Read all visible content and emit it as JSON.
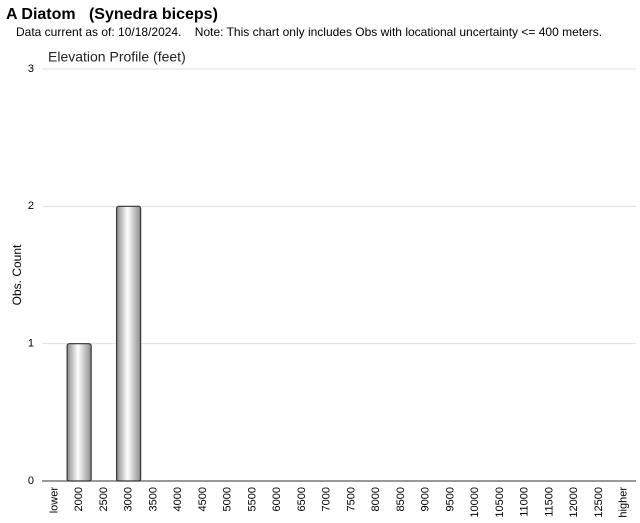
{
  "chart_data": {
    "type": "bar",
    "page_title": "A Diatom   (Synedra biceps)",
    "subtitle": "Data current as of: 10/18/2024.    Note: This chart only includes Obs with locational uncertainty <= 400 meters.",
    "title": "Elevation Profile (feet)",
    "y_label": "Obs. Count",
    "categories": [
      "lower",
      "2000",
      "2500",
      "3000",
      "3500",
      "4000",
      "4500",
      "5000",
      "5500",
      "6000",
      "6500",
      "7000",
      "7500",
      "8000",
      "8500",
      "9000",
      "9500",
      "10000",
      "10500",
      "11000",
      "11500",
      "12000",
      "12500",
      "higher"
    ],
    "values": [
      0,
      1,
      0,
      2,
      0,
      0,
      0,
      0,
      0,
      0,
      0,
      0,
      0,
      0,
      0,
      0,
      0,
      0,
      0,
      0,
      0,
      0,
      0,
      0
    ],
    "color": "#8c8c8c",
    "ylim": [
      0,
      3
    ],
    "yticks": [
      0,
      1,
      2,
      3
    ],
    "grid": true
  }
}
